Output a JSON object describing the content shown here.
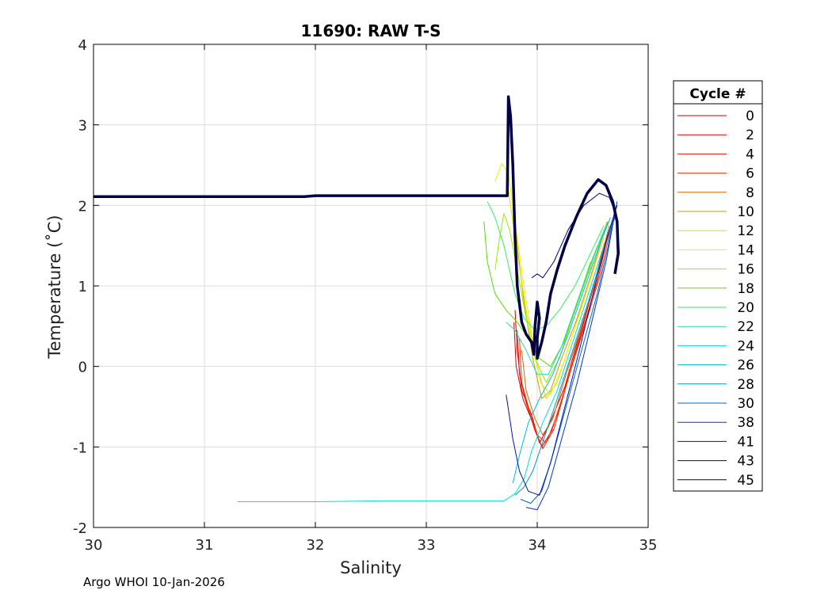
{
  "chart_data": {
    "type": "line",
    "title": "11690: RAW T-S",
    "xlabel": "Salinity",
    "ylabel": "Temperature (˚C)",
    "xlim": [
      30,
      35
    ],
    "ylim": [
      -2,
      4
    ],
    "xticks": [
      30,
      31,
      32,
      33,
      34,
      35
    ],
    "yticks": [
      -2,
      -1,
      0,
      1,
      2,
      3,
      4
    ],
    "grid": true,
    "legend": {
      "title": "Cycle #",
      "placement": "right-outside"
    },
    "series": [
      {
        "name": "0",
        "color": "#cc0000",
        "points": [
          [
            33.8,
            0.7
          ],
          [
            33.82,
            0.2
          ],
          [
            33.86,
            -0.3
          ],
          [
            33.95,
            -0.6
          ],
          [
            34.02,
            -0.95
          ],
          [
            34.1,
            -0.75
          ],
          [
            34.25,
            -0.25
          ],
          [
            34.38,
            0.4
          ],
          [
            34.5,
            0.95
          ],
          [
            34.6,
            1.5
          ],
          [
            34.68,
            1.8
          ]
        ]
      },
      {
        "name": "2",
        "color": "#dd0000",
        "points": [
          [
            33.79,
            0.55
          ],
          [
            33.81,
            0.0
          ],
          [
            33.87,
            -0.4
          ],
          [
            33.96,
            -0.7
          ],
          [
            34.04,
            -1.0
          ],
          [
            34.13,
            -0.8
          ],
          [
            34.27,
            -0.2
          ],
          [
            34.4,
            0.45
          ],
          [
            34.52,
            1.05
          ],
          [
            34.63,
            1.6
          ],
          [
            34.7,
            1.85
          ]
        ]
      },
      {
        "name": "4",
        "color": "#ee1100",
        "points": [
          [
            33.82,
            0.45
          ],
          [
            33.84,
            -0.1
          ],
          [
            33.9,
            -0.45
          ],
          [
            33.98,
            -0.8
          ],
          [
            34.05,
            -1.02
          ],
          [
            34.15,
            -0.78
          ],
          [
            34.28,
            -0.15
          ],
          [
            34.42,
            0.5
          ],
          [
            34.55,
            1.1
          ],
          [
            34.64,
            1.65
          ]
        ]
      },
      {
        "name": "6",
        "color": "#ee3300",
        "points": [
          [
            33.84,
            0.35
          ],
          [
            33.86,
            -0.2
          ],
          [
            33.92,
            -0.5
          ],
          [
            34.0,
            -0.85
          ],
          [
            34.08,
            -0.95
          ],
          [
            34.18,
            -0.6
          ],
          [
            34.3,
            -0.05
          ],
          [
            34.44,
            0.55
          ],
          [
            34.57,
            1.15
          ],
          [
            34.66,
            1.7
          ]
        ]
      },
      {
        "name": "8",
        "color": "#dd6600",
        "points": [
          [
            33.86,
            0.2
          ],
          [
            33.9,
            -0.3
          ],
          [
            33.98,
            -0.65
          ],
          [
            34.05,
            -0.85
          ],
          [
            34.14,
            -0.65
          ],
          [
            34.26,
            -0.1
          ],
          [
            34.4,
            0.5
          ],
          [
            34.53,
            1.1
          ],
          [
            34.65,
            1.75
          ]
        ]
      },
      {
        "name": "10",
        "color": "#cc9900",
        "points": [
          [
            33.78,
            2.2
          ],
          [
            33.82,
            1.5
          ],
          [
            33.88,
            0.8
          ],
          [
            33.96,
            0.1
          ],
          [
            34.04,
            -0.4
          ],
          [
            34.12,
            -0.3
          ],
          [
            34.22,
            0.1
          ],
          [
            34.36,
            0.6
          ],
          [
            34.5,
            1.2
          ],
          [
            34.63,
            1.8
          ]
        ]
      },
      {
        "name": "12",
        "color": "#dddd00",
        "points": [
          [
            33.73,
            2.3
          ],
          [
            33.76,
            2.0
          ],
          [
            33.82,
            1.4
          ],
          [
            33.9,
            0.7
          ],
          [
            34.0,
            0.0
          ],
          [
            34.08,
            -0.4
          ],
          [
            34.18,
            -0.2
          ],
          [
            34.32,
            0.4
          ],
          [
            34.46,
            1.0
          ],
          [
            34.6,
            1.6
          ]
        ]
      },
      {
        "name": "14",
        "color": "#eeee00",
        "points": [
          [
            33.62,
            2.3
          ],
          [
            33.68,
            2.52
          ],
          [
            33.74,
            2.4
          ],
          [
            33.8,
            1.8
          ],
          [
            33.88,
            1.0
          ],
          [
            33.95,
            0.4
          ],
          [
            34.03,
            -0.2
          ],
          [
            34.12,
            -0.35
          ],
          [
            34.24,
            0.05
          ],
          [
            34.38,
            0.65
          ],
          [
            34.52,
            1.25
          ]
        ]
      },
      {
        "name": "16",
        "color": "#99ee00",
        "points": [
          [
            33.62,
            1.2
          ],
          [
            33.66,
            1.6
          ],
          [
            33.7,
            1.9
          ],
          [
            33.75,
            1.7
          ],
          [
            33.82,
            1.2
          ],
          [
            33.9,
            0.6
          ],
          [
            33.98,
            0.1
          ],
          [
            34.08,
            -0.2
          ],
          [
            34.2,
            0.1
          ],
          [
            34.34,
            0.7
          ],
          [
            34.48,
            1.3
          ]
        ]
      },
      {
        "name": "18",
        "color": "#55dd00",
        "points": [
          [
            33.52,
            1.8
          ],
          [
            33.55,
            1.3
          ],
          [
            33.62,
            0.9
          ],
          [
            33.72,
            0.7
          ],
          [
            33.82,
            0.55
          ],
          [
            33.92,
            0.35
          ],
          [
            34.02,
            0.1
          ],
          [
            34.12,
            0.0
          ],
          [
            34.24,
            0.3
          ],
          [
            34.38,
            0.85
          ],
          [
            34.52,
            1.4
          ],
          [
            34.64,
            1.8
          ]
        ]
      },
      {
        "name": "20",
        "color": "#33ee66",
        "points": [
          [
            33.55,
            2.05
          ],
          [
            33.62,
            1.85
          ],
          [
            33.7,
            1.5
          ],
          [
            33.8,
            0.9
          ],
          [
            33.88,
            0.6
          ],
          [
            33.98,
            0.45
          ],
          [
            34.08,
            0.5
          ],
          [
            34.2,
            0.7
          ],
          [
            34.34,
            1.0
          ],
          [
            34.48,
            1.4
          ],
          [
            34.6,
            1.75
          ]
        ]
      },
      {
        "name": "22",
        "color": "#22ddaa",
        "points": [
          [
            33.72,
            0.55
          ],
          [
            33.8,
            0.45
          ],
          [
            33.9,
            0.2
          ],
          [
            34.0,
            -0.1
          ],
          [
            34.1,
            -0.1
          ],
          [
            34.22,
            0.25
          ],
          [
            34.36,
            0.8
          ],
          [
            34.5,
            1.35
          ],
          [
            34.62,
            1.75
          ]
        ]
      },
      {
        "name": "24",
        "color": "#00dddd",
        "points": [
          [
            31.3,
            -1.68
          ],
          [
            32.0,
            -1.68
          ],
          [
            32.6,
            -1.67
          ],
          [
            33.2,
            -1.67
          ],
          [
            33.7,
            -1.67
          ],
          [
            33.8,
            -1.58
          ],
          [
            33.88,
            -1.4
          ],
          [
            33.95,
            -1.05
          ],
          [
            34.05,
            -0.7
          ],
          [
            34.18,
            -0.3
          ],
          [
            34.32,
            0.3
          ],
          [
            34.46,
            0.9
          ],
          [
            34.6,
            1.5
          ]
        ]
      },
      {
        "name": "26",
        "color": "#00bbdd",
        "points": [
          [
            33.78,
            -1.45
          ],
          [
            33.84,
            -1.1
          ],
          [
            33.92,
            -0.7
          ],
          [
            34.02,
            -0.4
          ],
          [
            34.14,
            -0.1
          ],
          [
            34.28,
            0.4
          ],
          [
            34.42,
            0.95
          ],
          [
            34.56,
            1.5
          ],
          [
            34.66,
            1.85
          ]
        ]
      },
      {
        "name": "28",
        "color": "#0099cc",
        "points": [
          [
            33.8,
            -1.6
          ],
          [
            33.88,
            -1.5
          ],
          [
            33.96,
            -1.3
          ],
          [
            34.06,
            -0.9
          ],
          [
            34.18,
            -0.4
          ],
          [
            34.32,
            0.2
          ],
          [
            34.46,
            0.8
          ],
          [
            34.58,
            1.35
          ],
          [
            34.68,
            1.8
          ]
        ]
      },
      {
        "name": "30",
        "color": "#0066cc",
        "points": [
          [
            33.85,
            -1.65
          ],
          [
            33.94,
            -1.7
          ],
          [
            34.04,
            -1.55
          ],
          [
            34.14,
            -1.1
          ],
          [
            34.26,
            -0.5
          ],
          [
            34.4,
            0.2
          ],
          [
            34.54,
            0.9
          ],
          [
            34.64,
            1.5
          ],
          [
            34.7,
            1.95
          ]
        ]
      },
      {
        "name": "38",
        "color": "#0033cc",
        "points": [
          [
            33.9,
            -1.75
          ],
          [
            34.0,
            -1.78
          ],
          [
            34.1,
            -1.5
          ],
          [
            34.22,
            -0.9
          ],
          [
            34.36,
            -0.2
          ],
          [
            34.5,
            0.6
          ],
          [
            34.62,
            1.3
          ],
          [
            34.7,
            1.9
          ],
          [
            34.72,
            2.05
          ]
        ]
      },
      {
        "name": "41",
        "color": "#0011aa",
        "points": [
          [
            33.72,
            -0.35
          ],
          [
            33.78,
            -0.9
          ],
          [
            33.84,
            -1.3
          ],
          [
            33.92,
            -1.55
          ],
          [
            34.02,
            -1.6
          ],
          [
            34.12,
            -1.2
          ],
          [
            34.24,
            -0.55
          ],
          [
            34.38,
            0.2
          ],
          [
            34.52,
            1.0
          ],
          [
            34.64,
            1.65
          ],
          [
            34.72,
            2.0
          ]
        ]
      },
      {
        "name": "43",
        "color": "#000088",
        "points": [
          [
            33.95,
            1.1
          ],
          [
            34.0,
            1.15
          ],
          [
            34.05,
            1.1
          ],
          [
            34.15,
            1.3
          ],
          [
            34.28,
            1.7
          ],
          [
            34.42,
            2.0
          ],
          [
            34.56,
            2.15
          ],
          [
            34.65,
            2.1
          ],
          [
            34.72,
            1.85
          ],
          [
            34.74,
            1.4
          ]
        ]
      },
      {
        "name": "45",
        "color": "#000044",
        "bold": true,
        "points": [
          [
            30.0,
            2.11
          ],
          [
            31.0,
            2.11
          ],
          [
            31.9,
            2.11
          ],
          [
            32.0,
            2.12
          ],
          [
            33.0,
            2.12
          ],
          [
            33.73,
            2.12
          ],
          [
            33.74,
            3.35
          ],
          [
            33.76,
            3.1
          ],
          [
            33.78,
            2.5
          ],
          [
            33.8,
            1.6
          ],
          [
            33.82,
            1.0
          ],
          [
            33.86,
            0.55
          ],
          [
            33.9,
            0.4
          ],
          [
            33.95,
            0.3
          ],
          [
            33.97,
            0.15
          ],
          [
            33.98,
            0.5
          ],
          [
            34.0,
            0.8
          ],
          [
            34.02,
            0.6
          ],
          [
            34.0,
            0.35
          ],
          [
            34.0,
            0.1
          ],
          [
            34.04,
            0.3
          ],
          [
            34.08,
            0.55
          ],
          [
            34.12,
            0.9
          ],
          [
            34.18,
            1.2
          ],
          [
            34.25,
            1.5
          ],
          [
            34.35,
            1.85
          ],
          [
            34.45,
            2.15
          ],
          [
            34.55,
            2.32
          ],
          [
            34.62,
            2.25
          ],
          [
            34.68,
            2.05
          ],
          [
            34.72,
            1.8
          ],
          [
            34.73,
            1.4
          ],
          [
            34.7,
            1.15
          ]
        ]
      }
    ]
  },
  "footer": {
    "text": "Argo WHOI 10-Jan-2026"
  }
}
